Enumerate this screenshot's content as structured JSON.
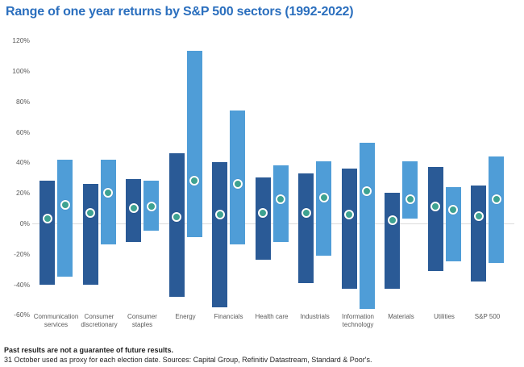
{
  "title": "Range of one year returns by S&P 500 sectors (1992-2022)",
  "footer": {
    "line1": "Past results are not a guarantee of future results.",
    "line2": "31 October used as proxy for each election date. Sources: Capital Group, Refinitiv Datastream, Standard & Poor's."
  },
  "colors": {
    "title_blue": "#2B6FBE",
    "dark_bar": "#2A5A96",
    "light_bar": "#4F9DD7",
    "median_dot": "#3EA291",
    "dot_ring": "#FFFFFF",
    "axis_text": "#5A5A5A",
    "zero_line": "#DCDCDC",
    "background": "#FFFFFF"
  },
  "chart_data": {
    "type": "bar",
    "subtype": "floating-range-bars-with-median-dots",
    "title": "Range of one year returns by S&P 500 sectors (1992-2022)",
    "categories": [
      "Communication services",
      "Consumer discretionary",
      "Consumer staples",
      "Energy",
      "Financials",
      "Health care",
      "Industrials",
      "Information technology",
      "Materials",
      "Utilities",
      "S&P 500"
    ],
    "series": [
      {
        "name": "dark-blue-range",
        "color": "#2A5A96",
        "ranges_pct": [
          [
            -40,
            28
          ],
          [
            -40,
            26
          ],
          [
            -12,
            29
          ],
          [
            -48,
            46
          ],
          [
            -55,
            40
          ],
          [
            -24,
            30
          ],
          [
            -39,
            33
          ],
          [
            -43,
            36
          ],
          [
            -43,
            20
          ],
          [
            -31,
            37
          ],
          [
            -38,
            25
          ]
        ],
        "dots_pct": [
          3,
          7,
          10,
          4,
          6,
          7,
          7,
          6,
          2,
          11,
          5
        ]
      },
      {
        "name": "light-blue-range",
        "color": "#4F9DD7",
        "ranges_pct": [
          [
            -35,
            42
          ],
          [
            -14,
            42
          ],
          [
            -5,
            28
          ],
          [
            -9,
            113
          ],
          [
            -14,
            74
          ],
          [
            -12,
            38
          ],
          [
            -21,
            41
          ],
          [
            -56,
            53
          ],
          [
            3,
            41
          ],
          [
            -25,
            24
          ],
          [
            -26,
            44
          ]
        ],
        "dots_pct": [
          12,
          20,
          11,
          28,
          26,
          16,
          17,
          21,
          16,
          9,
          16
        ]
      }
    ],
    "dot_color": "#3EA291",
    "xlabel": "",
    "ylabel": "",
    "unit": "%",
    "ylim": [
      -60,
      120
    ],
    "ytick_labels": [
      "120%",
      "100%",
      "80%",
      "60%",
      "40%",
      "20%",
      "0%",
      "-20%",
      "-40%",
      "-60%"
    ],
    "ytick_values": [
      120,
      100,
      80,
      60,
      40,
      20,
      0,
      -20,
      -40,
      -60
    ],
    "grid": "zero-line-only",
    "legend": "none"
  }
}
